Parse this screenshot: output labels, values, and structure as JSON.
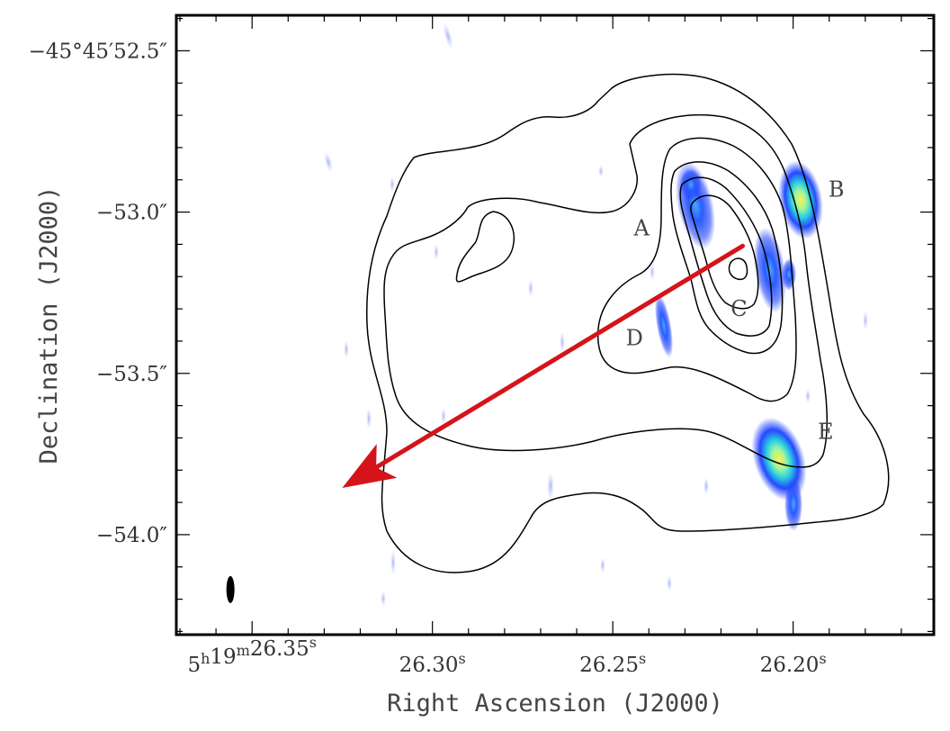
{
  "chart_data": {
    "type": "image_with_contours",
    "xlabel": "Right Ascension (J2000)",
    "ylabel": "Declination (J2000)",
    "x_ticks": [
      {
        "value": 26.35,
        "label_main": "5",
        "label_sup1": "h",
        "label_mid": "19",
        "label_sup2": "m",
        "label_tail": "26.35",
        "label_sup3": "s"
      },
      {
        "value": 26.3,
        "label_main": "26.30",
        "label_sup": "s"
      },
      {
        "value": 26.25,
        "label_main": "26.25",
        "label_sup": "s"
      },
      {
        "value": 26.2,
        "label_main": "26.20",
        "label_sup": "s"
      }
    ],
    "y_ticks": [
      {
        "value": -52.5,
        "label": "−45°45′52.5″"
      },
      {
        "value": -53.0,
        "label": "−53.0″"
      },
      {
        "value": -53.5,
        "label": "−53.5″"
      },
      {
        "value": -54.0,
        "label": "−54.0″"
      }
    ],
    "xlim": [
      26.371,
      26.161
    ],
    "ylim": [
      -54.31,
      -52.39
    ],
    "sources": [
      {
        "label": "A",
        "ra": 26.2285,
        "dec": -52.99,
        "label_ra": 26.242,
        "label_dec": -53.05
      },
      {
        "label": "B",
        "ra": 26.1985,
        "dec": -52.97,
        "label_ra": 26.188,
        "label_dec": -52.93
      },
      {
        "label": "C",
        "ra": 26.2078,
        "dec": -53.16,
        "label_ra": 26.215,
        "label_dec": -53.3
      },
      {
        "label": "D",
        "ra": 26.2382,
        "dec": -53.38,
        "label_ra": 26.244,
        "label_dec": -53.39
      },
      {
        "label": "E",
        "ra": 26.2045,
        "dec": -53.73,
        "label_ra": 26.191,
        "label_dec": -53.68
      }
    ],
    "arrow": {
      "from_ra": 26.214,
      "from_dec": -53.105,
      "to_ra": 26.325,
      "to_dec": -53.855,
      "color": "#d4141a"
    },
    "beam": {
      "ra": 26.356,
      "dec": -54.17
    },
    "colors": {
      "emission_low": "#2648ff",
      "emission_mid": "#2ad0e0",
      "emission_peak": "#fff14a",
      "frame": "#000000"
    }
  }
}
